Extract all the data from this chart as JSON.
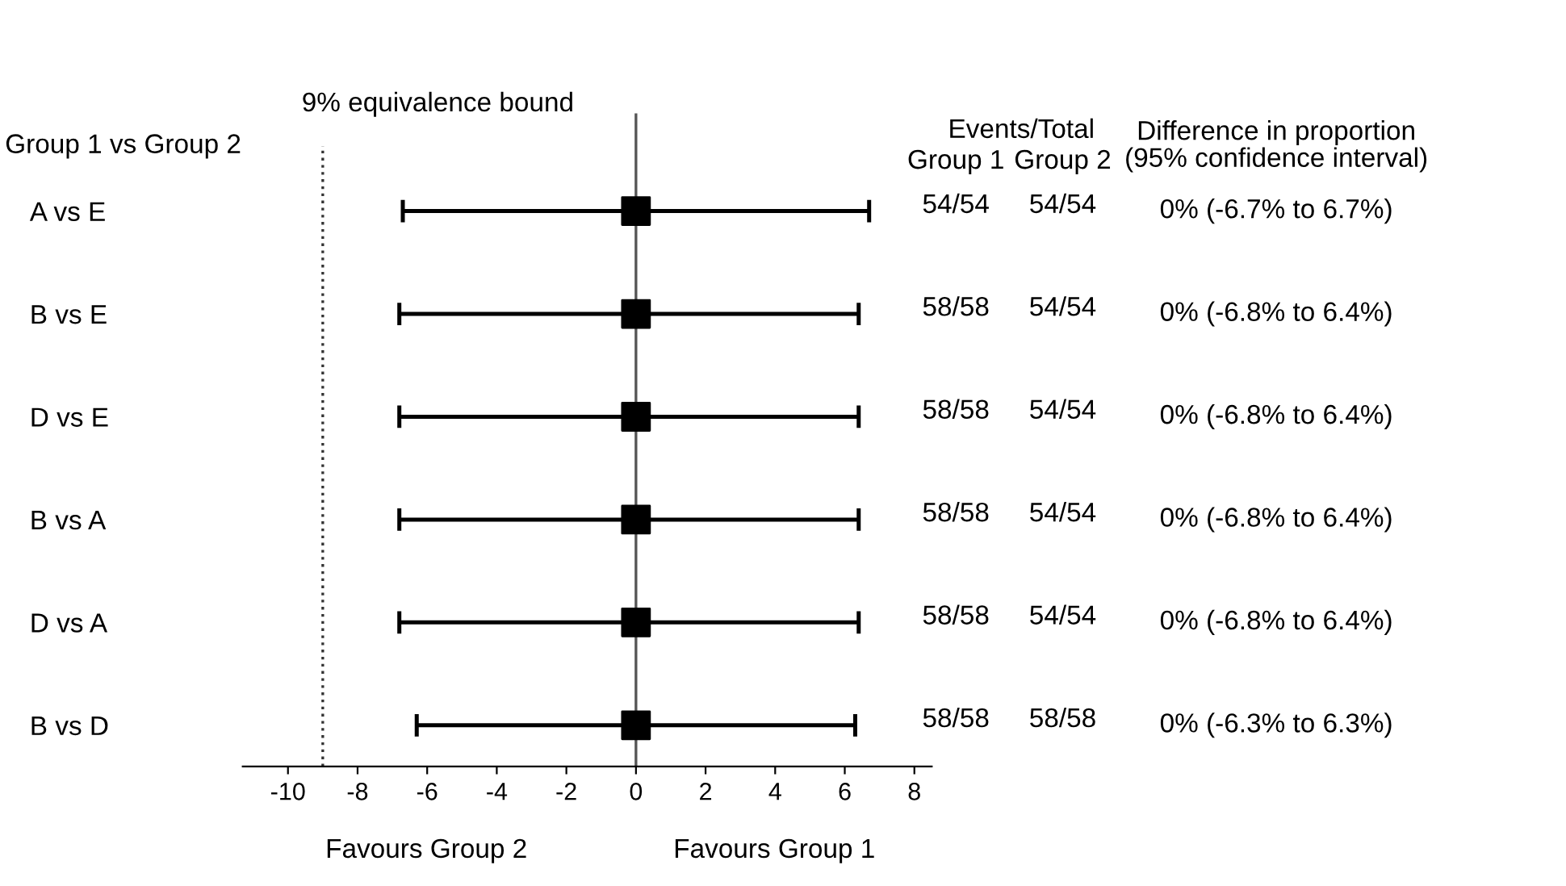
{
  "chart_data": {
    "type": "scatter",
    "orientation": "horizontal",
    "ylabel": "Group 1 vs Group 2",
    "categories": [
      "A vs E",
      "B vs E",
      "D vs E",
      "B vs A",
      "D vs A",
      "B vs D"
    ],
    "values": [
      0,
      0,
      0,
      0,
      0,
      0
    ],
    "errors": [
      [
        -6.7,
        6.7
      ],
      [
        -6.8,
        6.4
      ],
      [
        -6.8,
        6.4
      ],
      [
        -6.8,
        6.4
      ],
      [
        -6.8,
        6.4
      ],
      [
        -6.3,
        6.3
      ]
    ],
    "value_labels": [
      "0% (-6.7% to 6.7%)",
      "0% (-6.8% to 6.4%)",
      "0% (-6.8% to 6.4%)",
      "0% (-6.8% to 6.4%)",
      "0% (-6.8% to 6.4%)",
      "0% (-6.3% to 6.3%)"
    ],
    "color": "#000000",
    "marker": "square",
    "grid": false,
    "xlim": [
      -11.3,
      8.5
    ],
    "xticks": [
      -10,
      -8,
      -6,
      -4,
      -2,
      0,
      2,
      4,
      6,
      8
    ],
    "ref_lines": [
      {
        "axis": "x",
        "value": -9,
        "label": "9% equivalence bound",
        "line_style": "dotted",
        "color": "#333333"
      },
      {
        "axis": "x",
        "value": 0,
        "label": null,
        "line_style": "solid",
        "color": "#555555"
      }
    ],
    "annotations": [
      "Favours Group 2",
      "Favours Group 1",
      "Events/Total",
      "Group 1",
      "Group 2",
      "Difference in proportion\n(95% confidence interval)",
      "54/54",
      "54/54",
      "58/58",
      "54/54",
      "58/58",
      "54/54",
      "58/58",
      "54/54",
      "58/58",
      "54/54",
      "58/58",
      "58/58"
    ]
  }
}
